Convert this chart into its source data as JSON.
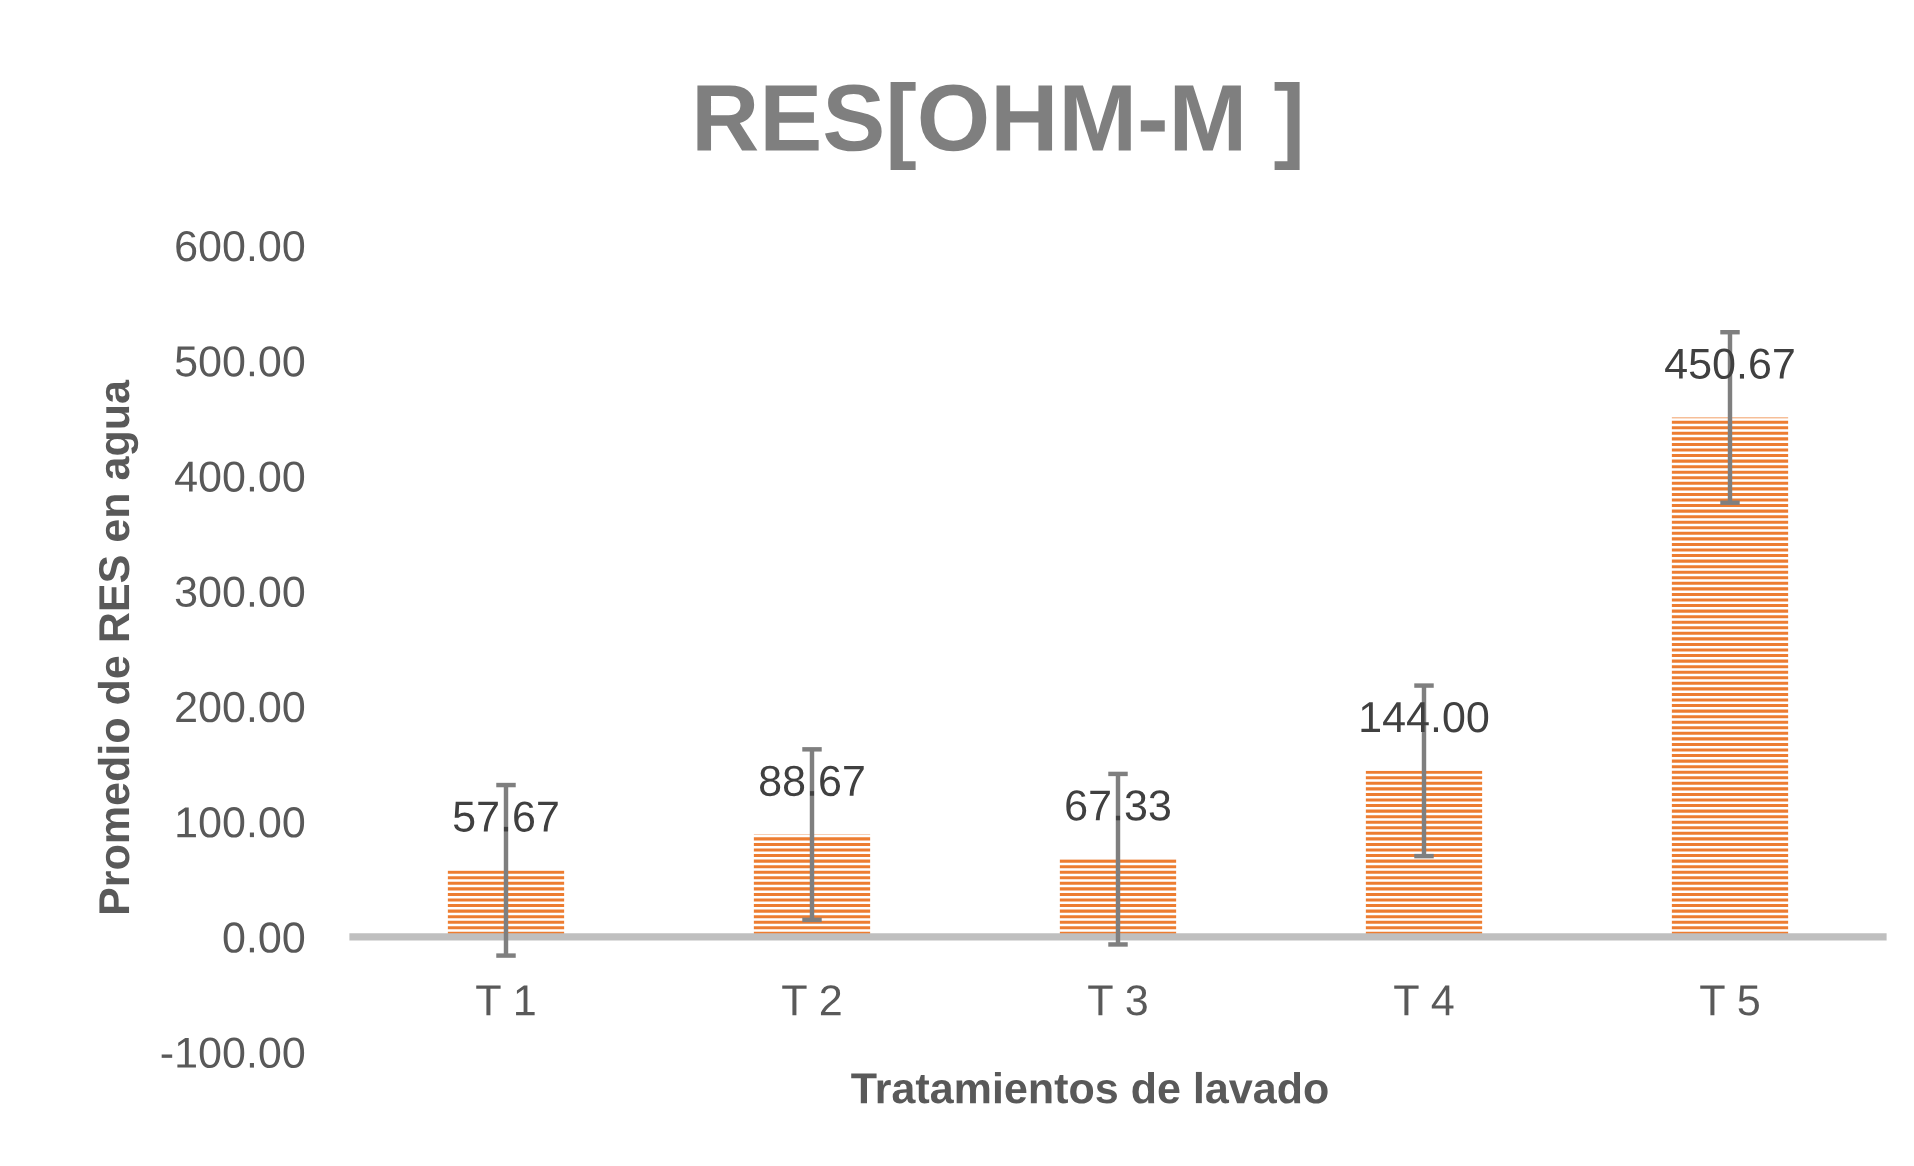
{
  "chart_data": {
    "type": "bar",
    "title": "RES[OHM-M ]",
    "xlabel": "Tratamientos de lavado",
    "ylabel": "Promedio de RES en agua",
    "categories": [
      "T 1",
      "T 2",
      "T 3",
      "T 4",
      "T 5"
    ],
    "values": [
      57.67,
      88.67,
      67.33,
      144.0,
      450.67
    ],
    "value_labels": [
      "57.67",
      "88.67",
      "67.33",
      "144.00",
      "450.67"
    ],
    "errors": [
      74,
      74,
      74,
      74,
      74
    ],
    "color": "#ed7d31",
    "ylim": [
      -100,
      600
    ],
    "yticks": [
      {
        "value": -100,
        "label": "-100.00"
      },
      {
        "value": 0,
        "label": "0.00"
      },
      {
        "value": 100,
        "label": "100.00"
      },
      {
        "value": 200,
        "label": "200.00"
      },
      {
        "value": 300,
        "label": "300.00"
      },
      {
        "value": 400,
        "label": "400.00"
      },
      {
        "value": 500,
        "label": "500.00"
      },
      {
        "value": 600,
        "label": "600.00"
      }
    ]
  }
}
